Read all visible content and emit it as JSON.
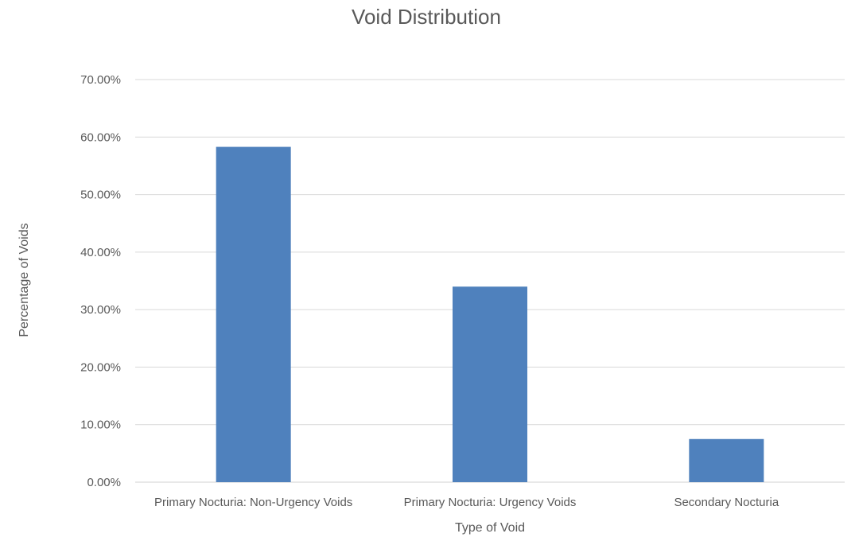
{
  "chart_data": {
    "type": "bar",
    "title": "Void Distribution",
    "xlabel": "Type of Void",
    "ylabel": "Percentage of Voids",
    "categories": [
      "Primary Nocturia: Non-Urgency Voids",
      "Primary Nocturia: Urgency Voids",
      "Secondary Nocturia"
    ],
    "values": [
      0.583,
      0.34,
      0.075
    ],
    "ylim": [
      0,
      0.7
    ],
    "yticks": [
      0,
      0.1,
      0.2,
      0.3,
      0.4,
      0.5,
      0.6,
      0.7
    ],
    "ytick_labels": [
      "0.00%",
      "10.00%",
      "20.00%",
      "30.00%",
      "40.00%",
      "50.00%",
      "60.00%",
      "70.00%"
    ],
    "grid": true,
    "legend": "none",
    "colors": {
      "bar": "#4f81bd"
    }
  }
}
